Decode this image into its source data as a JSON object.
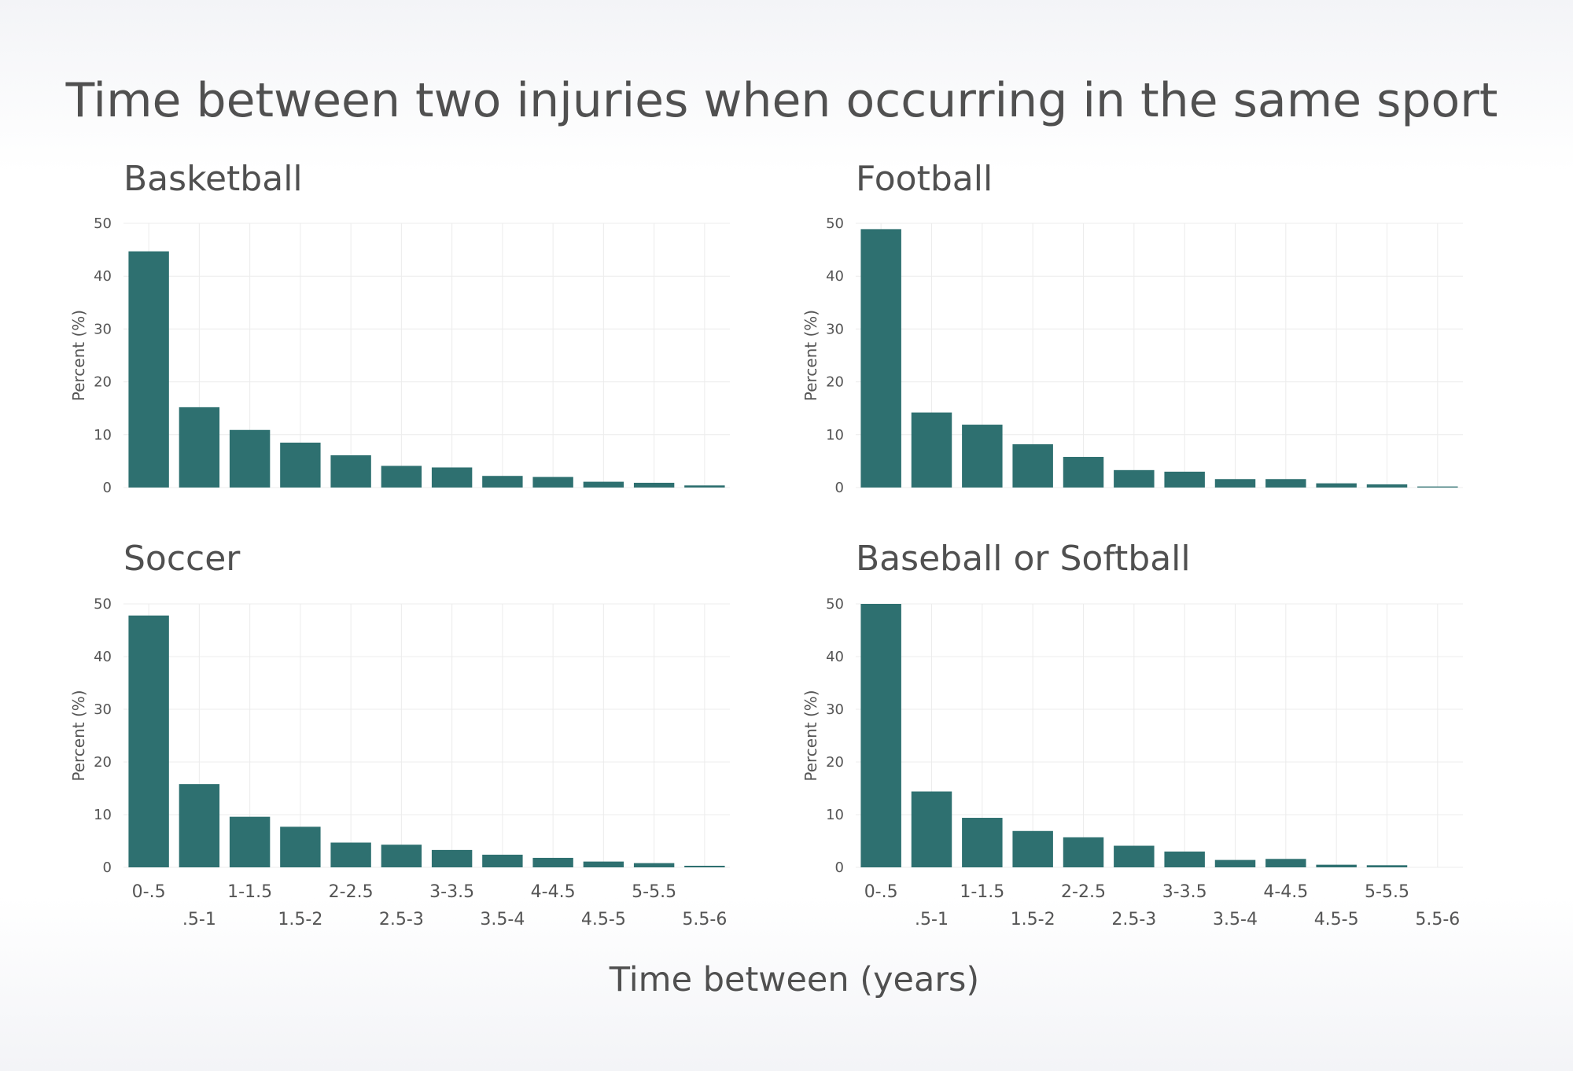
{
  "title": "Time between two injuries when occurring in the same sport",
  "xlabel": "Time between (years)",
  "ylabel": "Percent (%)",
  "colors": {
    "bar": "#2e7070",
    "grid": "#ececec",
    "text": "#505050",
    "tick": "#555555"
  },
  "chart_data": [
    {
      "type": "bar",
      "title": "Basketball",
      "categories": [
        "0-.5",
        ".5-1",
        "1-1.5",
        "1.5-2",
        "2-2.5",
        "2.5-3",
        "3-3.5",
        "3.5-4",
        "4-4.5",
        "4.5-5",
        "5-5.5",
        "5.5-6"
      ],
      "values": [
        44.7,
        15.2,
        10.9,
        8.5,
        6.1,
        4.1,
        3.8,
        2.2,
        2.0,
        1.1,
        0.9,
        0.4
      ],
      "xlabel": "Time between (years)",
      "ylabel": "Percent (%)",
      "ylim": [
        0,
        50
      ],
      "yticks": [
        0,
        10,
        20,
        30,
        40,
        50
      ],
      "grid": true
    },
    {
      "type": "bar",
      "title": "Football",
      "categories": [
        "0-.5",
        ".5-1",
        "1-1.5",
        "1.5-2",
        "2-2.5",
        "2.5-3",
        "3-3.5",
        "3.5-4",
        "4-4.5",
        "4.5-5",
        "5-5.5",
        "5.5-6"
      ],
      "values": [
        48.9,
        14.2,
        11.9,
        8.2,
        5.8,
        3.3,
        3.0,
        1.6,
        1.6,
        0.8,
        0.6,
        0.2
      ],
      "xlabel": "Time between (years)",
      "ylabel": "Percent (%)",
      "ylim": [
        0,
        50
      ],
      "yticks": [
        0,
        10,
        20,
        30,
        40,
        50
      ],
      "grid": true
    },
    {
      "type": "bar",
      "title": "Soccer",
      "categories": [
        "0-.5",
        ".5-1",
        "1-1.5",
        "1.5-2",
        "2-2.5",
        "2.5-3",
        "3-3.5",
        "3.5-4",
        "4-4.5",
        "4.5-5",
        "5-5.5",
        "5.5-6"
      ],
      "values": [
        47.8,
        15.8,
        9.6,
        7.7,
        4.7,
        4.3,
        3.3,
        2.4,
        1.8,
        1.1,
        0.8,
        0.3
      ],
      "xlabel": "Time between (years)",
      "ylabel": "Percent (%)",
      "ylim": [
        0,
        50
      ],
      "yticks": [
        0,
        10,
        20,
        30,
        40,
        50
      ],
      "grid": true
    },
    {
      "type": "bar",
      "title": "Baseball or Softball",
      "categories": [
        "0-.5",
        ".5-1",
        "1-1.5",
        "1.5-2",
        "2-2.5",
        "2.5-3",
        "3-3.5",
        "3.5-4",
        "4-4.5",
        "4.5-5",
        "5-5.5",
        "5.5-6"
      ],
      "values": [
        50.0,
        14.4,
        9.4,
        6.9,
        5.7,
        4.1,
        3.0,
        1.4,
        1.6,
        0.5,
        0.4,
        0
      ],
      "xlabel": "Time between (years)",
      "ylabel": "Percent (%)",
      "ylim": [
        0,
        50
      ],
      "yticks": [
        0,
        10,
        20,
        30,
        40,
        50
      ],
      "grid": true
    }
  ]
}
